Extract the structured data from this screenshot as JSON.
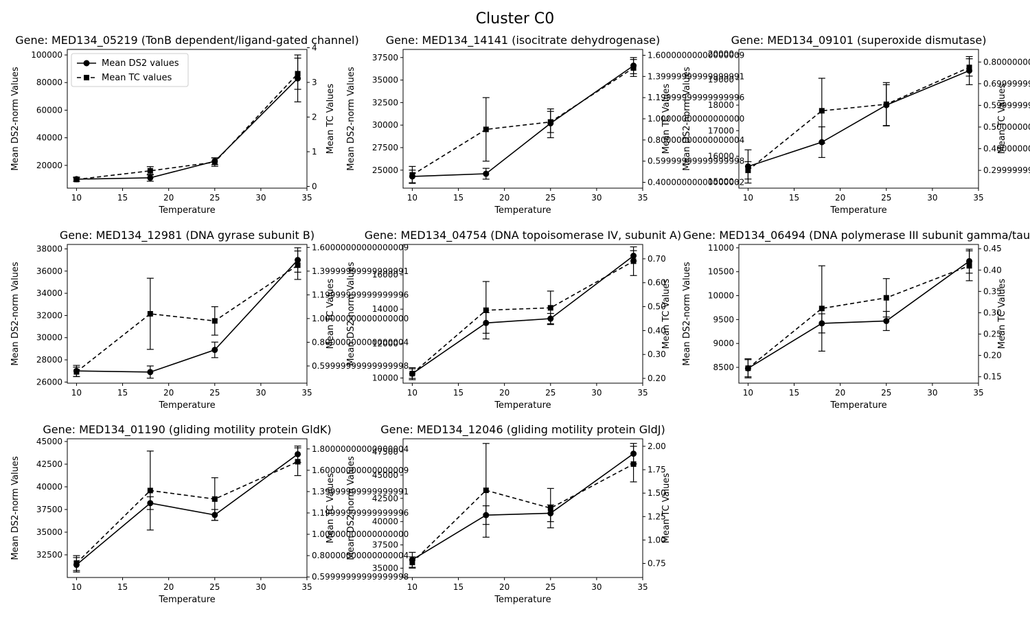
{
  "figure": {
    "title": "Cluster C0"
  },
  "chart_data": [
    {
      "type": "line",
      "title": "Gene: MED134_05219 (TonB dependent/ligand-gated channel)",
      "xlabel": "Temperature",
      "ylabel": "Mean DS2-norm Values",
      "y2label": "Mean TC Values",
      "x": [
        10,
        18,
        25,
        34
      ],
      "xlim": [
        9,
        35
      ],
      "xticks": [
        10,
        15,
        20,
        25,
        30,
        35
      ],
      "ylim": [
        3500,
        104000
      ],
      "yticks": [
        20000,
        40000,
        60000,
        80000,
        100000
      ],
      "y2lim": [
        -0.05,
        3.95
      ],
      "y2ticks": [
        0,
        1,
        2,
        3,
        4
      ],
      "legend": {
        "position": "top-left"
      },
      "series": [
        {
          "name": "Mean DS2 values",
          "axis": "left",
          "style": "solid",
          "marker": "circle",
          "values": [
            10000,
            11000,
            23000,
            83000
          ],
          "errors": [
            1500,
            2500,
            2500,
            17000
          ]
        },
        {
          "name": "Mean TC values",
          "axis": "right",
          "style": "dashed",
          "marker": "square",
          "values": [
            0.2,
            0.45,
            0.7,
            3.25
          ],
          "errors": [
            0.05,
            0.12,
            0.12,
            0.45
          ]
        }
      ]
    },
    {
      "type": "line",
      "title": "Gene: MED134_14141 (isocitrate dehydrogenase)",
      "xlabel": "Temperature",
      "ylabel": "Mean DS2-norm Values",
      "y2label": "Mean TC Values",
      "x": [
        10,
        18,
        25,
        34
      ],
      "xlim": [
        9,
        35
      ],
      "xticks": [
        10,
        15,
        20,
        25,
        30,
        35
      ],
      "ylim": [
        23000,
        38400
      ],
      "yticks": [
        25000,
        27500,
        30000,
        32500,
        35000,
        37500
      ],
      "y2lim": [
        0.345,
        1.655
      ],
      "y2ticks": [
        0.4,
        0.6,
        0.8,
        1.0,
        1.2,
        1.4,
        1.6
      ],
      "series": [
        {
          "name": "Mean DS2 values",
          "axis": "left",
          "style": "solid",
          "marker": "circle",
          "values": [
            24300,
            24600,
            30200,
            36600
          ],
          "errors": [
            700,
            600,
            1600,
            900
          ]
        },
        {
          "name": "Mean TC values",
          "axis": "right",
          "style": "dashed",
          "marker": "square",
          "values": [
            0.47,
            0.9,
            0.97,
            1.48
          ],
          "errors": [
            0.08,
            0.3,
            0.1,
            0.08
          ]
        }
      ]
    },
    {
      "type": "line",
      "title": "Gene: MED134_09101 (superoxide dismutase)",
      "xlabel": "Temperature",
      "ylabel": "Mean DS2-norm Values",
      "y2label": "Mean TC Values",
      "x": [
        10,
        18,
        25,
        34
      ],
      "xlim": [
        9,
        35
      ],
      "xticks": [
        10,
        15,
        20,
        25,
        30,
        35
      ],
      "ylim": [
        14750,
        20180
      ],
      "yticks": [
        15000,
        16000,
        17000,
        18000,
        19000,
        20000
      ],
      "y2lim": [
        0.218,
        0.858
      ],
      "y2ticks": [
        0.3,
        0.4,
        0.5,
        0.6,
        0.7,
        0.8
      ],
      "series": [
        {
          "name": "Mean DS2 values",
          "axis": "left",
          "style": "solid",
          "marker": "circle",
          "values": [
            15600,
            16550,
            18000,
            19350
          ],
          "errors": [
            650,
            600,
            800,
            550
          ]
        },
        {
          "name": "Mean TC values",
          "axis": "right",
          "style": "dashed",
          "marker": "square",
          "values": [
            0.3,
            0.575,
            0.605,
            0.775
          ],
          "errors": [
            0.04,
            0.15,
            0.1,
            0.04
          ]
        }
      ]
    },
    {
      "type": "line",
      "title": "Gene: MED134_12981 (DNA gyrase subunit B)",
      "xlabel": "Temperature",
      "ylabel": "Mean DS2-norm Values",
      "y2label": "Mean TC Values",
      "x": [
        10,
        18,
        25,
        34
      ],
      "xlim": [
        9,
        35
      ],
      "xticks": [
        10,
        15,
        20,
        25,
        30,
        35
      ],
      "ylim": [
        25900,
        38400
      ],
      "yticks": [
        26000,
        28000,
        30000,
        32000,
        34000,
        36000,
        38000
      ],
      "y2lim": [
        0.455,
        1.625
      ],
      "y2ticks": [
        0.6,
        0.8,
        1.0,
        1.2,
        1.4,
        1.6
      ],
      "series": [
        {
          "name": "Mean DS2 values",
          "axis": "left",
          "style": "solid",
          "marker": "circle",
          "values": [
            27000,
            26900,
            28900,
            37000
          ],
          "errors": [
            500,
            550,
            700,
            1100
          ]
        },
        {
          "name": "Mean TC values",
          "axis": "right",
          "style": "dashed",
          "marker": "square",
          "values": [
            0.55,
            1.04,
            0.98,
            1.45
          ],
          "errors": [
            0.04,
            0.3,
            0.12,
            0.12
          ]
        }
      ]
    },
    {
      "type": "line",
      "title": "Gene: MED134_04754 (DNA topoisomerase IV, subunit A)",
      "xlabel": "Temperature",
      "ylabel": "Mean DS2-norm Values",
      "y2label": "Mean TC Values",
      "x": [
        10,
        18,
        25,
        34
      ],
      "xlim": [
        9,
        35
      ],
      "xticks": [
        10,
        15,
        20,
        25,
        30,
        35
      ],
      "ylim": [
        9700,
        17760
      ],
      "yticks": [
        10000,
        12000,
        14000,
        16000
      ],
      "y2lim": [
        0.18,
        0.76
      ],
      "y2ticks": [
        0.2,
        0.3,
        0.4,
        0.5,
        0.6,
        0.7
      ],
      "series": [
        {
          "name": "Mean DS2 values",
          "axis": "left",
          "style": "solid",
          "marker": "circle",
          "values": [
            10250,
            13200,
            13450,
            17100
          ],
          "errors": [
            350,
            600,
            300,
            300
          ]
        },
        {
          "name": "Mean TC values",
          "axis": "right",
          "style": "dashed",
          "marker": "square",
          "values": [
            0.22,
            0.485,
            0.495,
            0.69
          ],
          "errors": [
            0.02,
            0.12,
            0.07,
            0.06
          ]
        }
      ]
    },
    {
      "type": "line",
      "title": "Gene: MED134_06494 (DNA polymerase III subunit gamma/tau)",
      "xlabel": "Temperature",
      "ylabel": "Mean DS2-norm Values",
      "y2label": "Mean TC Values",
      "x": [
        10,
        18,
        25,
        34
      ],
      "xlim": [
        9,
        35
      ],
      "xticks": [
        10,
        15,
        20,
        25,
        30,
        35
      ],
      "ylim": [
        8170,
        11070
      ],
      "yticks": [
        8500,
        9000,
        9500,
        10000,
        10500,
        11000
      ],
      "y2lim": [
        0.135,
        0.46
      ],
      "y2ticks": [
        0.15,
        0.2,
        0.25,
        0.3,
        0.35,
        0.4,
        0.45
      ],
      "series": [
        {
          "name": "Mean DS2 values",
          "axis": "left",
          "style": "solid",
          "marker": "circle",
          "values": [
            8480,
            9420,
            9470,
            10720
          ],
          "errors": [
            200,
            200,
            200,
            250
          ]
        },
        {
          "name": "Mean TC values",
          "axis": "right",
          "style": "dashed",
          "marker": "square",
          "values": [
            0.17,
            0.31,
            0.335,
            0.41
          ],
          "errors": [
            0.02,
            0.1,
            0.045,
            0.035
          ]
        }
      ]
    },
    {
      "type": "line",
      "title": "Gene: MED134_01190 (gliding motility protein GldK)",
      "xlabel": "Temperature",
      "ylabel": "Mean DS2-norm Values",
      "y2label": "Mean TC Values",
      "x": [
        10,
        18,
        25,
        34
      ],
      "xlim": [
        9,
        35
      ],
      "xticks": [
        10,
        15,
        20,
        25,
        30,
        35
      ],
      "ylim": [
        30000,
        45300
      ],
      "yticks": [
        32500,
        35000,
        37500,
        40000,
        42500,
        45000
      ],
      "y2lim": [
        0.595,
        1.895
      ],
      "y2ticks": [
        0.6,
        0.8,
        1.0,
        1.2,
        1.4,
        1.6,
        1.8
      ],
      "series": [
        {
          "name": "Mean DS2 values",
          "axis": "left",
          "style": "solid",
          "marker": "circle",
          "values": [
            31400,
            38200,
            36900,
            43600
          ],
          "errors": [
            800,
            700,
            600,
            900
          ]
        },
        {
          "name": "Mean TC values",
          "axis": "right",
          "style": "dashed",
          "marker": "square",
          "values": [
            0.73,
            1.41,
            1.33,
            1.68
          ],
          "errors": [
            0.07,
            0.37,
            0.2,
            0.13
          ]
        }
      ]
    },
    {
      "type": "line",
      "title": "Gene: MED134_12046 (gliding motility protein GldJ)",
      "xlabel": "Temperature",
      "ylabel": "Mean DS2-norm Values",
      "y2label": "Mean TC Values",
      "x": [
        10,
        18,
        25,
        34
      ],
      "xlim": [
        9,
        35
      ],
      "xticks": [
        10,
        15,
        20,
        25,
        30,
        35
      ],
      "ylim": [
        34000,
        48900
      ],
      "yticks": [
        35000,
        37500,
        40000,
        42500,
        45000,
        47500
      ],
      "y2lim": [
        0.6,
        2.08
      ],
      "y2ticks": [
        0.75,
        1.0,
        1.25,
        1.5,
        1.75,
        2.0
      ],
      "series": [
        {
          "name": "Mean DS2 values",
          "axis": "left",
          "style": "solid",
          "marker": "circle",
          "values": [
            35900,
            40700,
            40900,
            47300
          ],
          "errors": [
            800,
            1000,
            900,
            1100
          ]
        },
        {
          "name": "Mean TC values",
          "axis": "right",
          "style": "dashed",
          "marker": "square",
          "values": [
            0.76,
            1.53,
            1.34,
            1.81
          ],
          "errors": [
            0.06,
            0.5,
            0.21,
            0.19
          ]
        }
      ]
    }
  ]
}
